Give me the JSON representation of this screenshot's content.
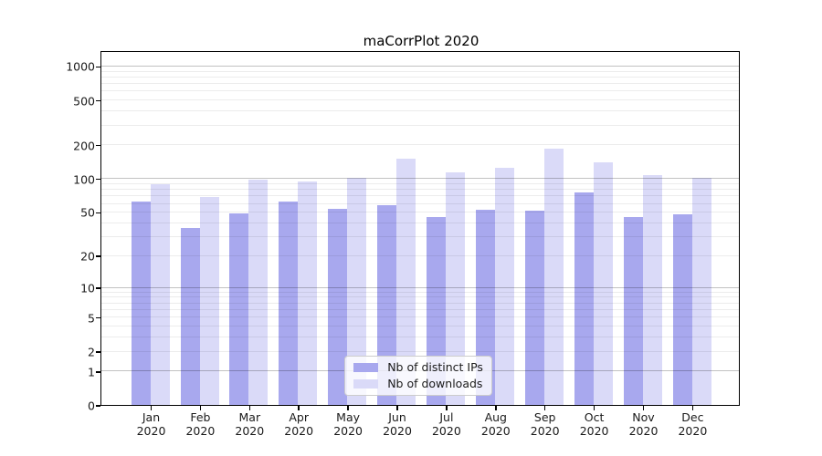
{
  "chart_data": {
    "type": "bar",
    "title": "maCorrPlot 2020",
    "categories": [
      "Jan",
      "Feb",
      "Mar",
      "Apr",
      "May",
      "Jun",
      "Jul",
      "Aug",
      "Sep",
      "Oct",
      "Nov",
      "Dec"
    ],
    "x_tick_year": "2020",
    "series": [
      {
        "name": "Nb of distinct IPs",
        "color": "#a8a8ee",
        "values": [
          62,
          36,
          49,
          62,
          54,
          58,
          45,
          53,
          52,
          75,
          45,
          48
        ]
      },
      {
        "name": "Nb of downloads",
        "color": "#dadaf8",
        "values": [
          89,
          69,
          98,
          94,
          101,
          150,
          114,
          125,
          185,
          141,
          108,
          101
        ]
      }
    ],
    "xlabel": "",
    "ylabel": "",
    "y_scale": "log1p",
    "y_ticks": [
      0,
      1,
      2,
      5,
      10,
      20,
      50,
      100,
      200,
      500,
      1000
    ],
    "ylim": [
      0,
      1330
    ],
    "grid": "horizontal major and log-minor lines, drawn over bars",
    "legend_position": "inside lower-center",
    "colors": {
      "background": "#ffffff",
      "spine": "#000000",
      "major_grid": "rgba(0,0,0,0.24)",
      "minor_grid": "rgba(0,0,0,0.075)",
      "legend_border": "#cccccc"
    }
  }
}
